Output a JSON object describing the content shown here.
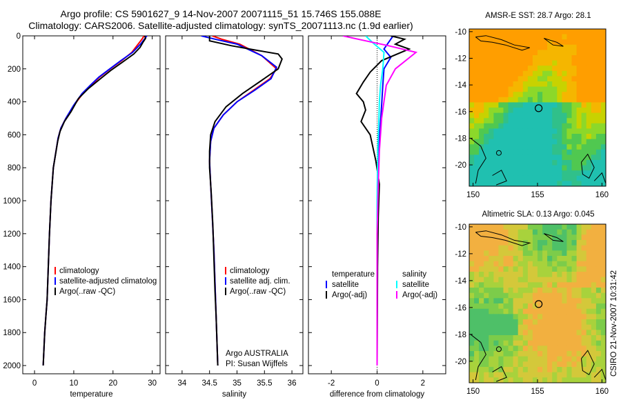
{
  "header": {
    "line1": "Argo profile: CS 5901627_9 14-Nov-2007 20071115_51 15.746S 155.088E",
    "line2": "Climatology: CARS2006. Satellite-adjusted climatology: synTS_20071113.nc (1.9d earlier)"
  },
  "credit": "CSIRO 21-Nov-2007 10:31:42",
  "float_info": {
    "line1": "Argo AUSTRALIA",
    "line2": "PI: Susan Wijffels"
  },
  "colors": {
    "climatology": "#ff0000",
    "satellite": "#0000ff",
    "argo": "#000000",
    "sal_sat": "#00ffff",
    "sal_argo": "#ff00ff"
  },
  "chart_data": [
    {
      "type": "line",
      "xlabel": "temperature",
      "xlim": [
        -3,
        32
      ],
      "ylim": [
        2050,
        0
      ],
      "yticks": [
        0,
        200,
        400,
        600,
        800,
        1000,
        1200,
        1400,
        1600,
        1800,
        2000
      ],
      "xticks": [
        0,
        10,
        20,
        30
      ],
      "legend": [
        "climatology",
        "satellite-adjusted climatolog",
        "Argo(..raw -QC)"
      ],
      "series": [
        {
          "name": "climatology",
          "color": "#ff0000",
          "x": [
            27.9,
            27.4,
            26.4,
            24.8,
            22.2,
            19.3,
            16.6,
            14.4,
            12.3,
            10.1,
            8.0,
            6.7,
            6.0,
            4.8,
            4.2,
            3.8,
            3.5,
            3.2,
            2.9,
            2.6,
            2.4,
            2.2
          ],
          "y": [
            0,
            20,
            50,
            100,
            150,
            200,
            250,
            300,
            350,
            420,
            500,
            560,
            620,
            800,
            1000,
            1200,
            1400,
            1600,
            1700,
            1800,
            1900,
            2000
          ]
        },
        {
          "name": "satellite-adjusted climatolog",
          "color": "#0000ff",
          "x": [
            28.6,
            28.0,
            27.0,
            25.0,
            22.0,
            19.2,
            16.4,
            14.2,
            12.1,
            10.0,
            8.0,
            6.7,
            6.0,
            4.8,
            4.2,
            3.8,
            3.5,
            3.2,
            2.9,
            2.6,
            2.4,
            2.2
          ],
          "y": [
            0,
            20,
            50,
            100,
            150,
            200,
            250,
            300,
            350,
            420,
            500,
            560,
            620,
            800,
            1000,
            1200,
            1400,
            1600,
            1700,
            1800,
            1900,
            2000
          ]
        },
        {
          "name": "Argo(..raw -QC)",
          "color": "#000000",
          "x": [
            28.1,
            28.3,
            27.6,
            26.9,
            25.3,
            22.4,
            19.4,
            16.8,
            13.7,
            11.2,
            9.3,
            7.6,
            6.5,
            5.9,
            4.8,
            4.2,
            3.8,
            3.5,
            3.2,
            2.9,
            2.6,
            2.4,
            2.2
          ],
          "y": [
            0,
            15,
            40,
            70,
            110,
            160,
            210,
            260,
            320,
            380,
            460,
            520,
            580,
            640,
            800,
            1000,
            1200,
            1400,
            1600,
            1700,
            1800,
            1900,
            2000
          ]
        }
      ]
    },
    {
      "type": "line",
      "xlabel": "salinity",
      "xlim": [
        33.7,
        36.2
      ],
      "ylim": [
        2050,
        0
      ],
      "xticks": [
        34,
        34.5,
        35,
        35.5,
        36
      ],
      "legend": [
        "climatology",
        "satellite adj. clim.",
        "Argo(..raw -QC)"
      ],
      "series": [
        {
          "name": "climatology",
          "color": "#ff0000",
          "x": [
            34.55,
            34.72,
            35.05,
            35.45,
            35.72,
            35.6,
            35.3,
            35.0,
            34.75,
            34.58,
            34.52,
            34.5,
            34.52,
            34.55,
            34.58,
            34.6,
            34.62,
            34.63,
            34.64,
            34.65
          ],
          "y": [
            0,
            20,
            50,
            120,
            200,
            260,
            330,
            400,
            480,
            560,
            640,
            760,
            900,
            1100,
            1300,
            1500,
            1700,
            1800,
            1900,
            2000
          ]
        },
        {
          "name": "satellite adj. clim.",
          "color": "#0000ff",
          "x": [
            34.35,
            34.6,
            35.0,
            35.45,
            35.72,
            35.62,
            35.32,
            35.0,
            34.75,
            34.58,
            34.52,
            34.5,
            34.52,
            34.55,
            34.58,
            34.6,
            34.62,
            34.63,
            34.64,
            34.65
          ],
          "y": [
            0,
            20,
            50,
            120,
            190,
            260,
            330,
            400,
            480,
            560,
            640,
            760,
            900,
            1100,
            1300,
            1500,
            1700,
            1800,
            1900,
            2000
          ]
        },
        {
          "name": "Argo(..raw -QC)",
          "color": "#000000",
          "x": [
            34.5,
            34.5,
            34.9,
            35.4,
            35.75,
            35.82,
            35.75,
            35.45,
            35.1,
            34.8,
            34.6,
            34.52,
            34.5,
            34.5,
            34.53,
            34.56,
            34.58,
            34.6,
            34.62,
            34.63,
            34.64,
            34.65
          ],
          "y": [
            0,
            30,
            60,
            90,
            110,
            140,
            200,
            270,
            350,
            430,
            520,
            600,
            700,
            800,
            950,
            1150,
            1350,
            1550,
            1700,
            1800,
            1900,
            2000
          ]
        }
      ]
    },
    {
      "type": "line",
      "xlabel": "difference from climatology",
      "xlim": [
        -3,
        3
      ],
      "ylim": [
        2050,
        0
      ],
      "xticks": [
        -2,
        0,
        2
      ],
      "legend_heads": [
        "temperature",
        "salinity"
      ],
      "legend": [
        "satellite",
        "Argo(-adj)",
        "satellite",
        "Argo(-adj)"
      ],
      "series": [
        {
          "name": "satellite",
          "color": "#0000ff",
          "x": [
            0.7,
            0.5,
            0.3,
            0.6,
            0.3,
            0.25,
            0.2,
            0.15,
            0.1,
            0.05,
            0.02,
            0.0,
            0.0,
            0.0,
            0.0
          ],
          "y": [
            0,
            40,
            80,
            130,
            200,
            300,
            420,
            520,
            620,
            720,
            900,
            1200,
            1500,
            1800,
            2000
          ]
        },
        {
          "name": "Argo(-adj)",
          "color": "#000000",
          "x": [
            0.6,
            1.2,
            0.8,
            1.4,
            0.2,
            -0.3,
            -0.6,
            -0.9,
            -0.6,
            -0.5,
            -0.7,
            -0.3,
            -0.05,
            0.1,
            0.05,
            0.02,
            0.0
          ],
          "y": [
            0,
            20,
            50,
            80,
            150,
            220,
            280,
            350,
            400,
            450,
            520,
            600,
            760,
            900,
            1100,
            1400,
            2000
          ]
        },
        {
          "name": "satellite",
          "color": "#00ffff",
          "x": [
            -0.5,
            -0.2,
            0.3,
            0.25,
            0.15,
            0.1,
            0.08,
            0.05,
            0.03,
            0.02,
            0.0,
            0.0,
            0.0,
            0.0
          ],
          "y": [
            0,
            40,
            100,
            200,
            300,
            400,
            500,
            600,
            700,
            800,
            1000,
            1400,
            1800,
            2000
          ]
        },
        {
          "name": "Argo(-adj)",
          "color": "#ff00ff",
          "x": [
            -1.5,
            -0.5,
            0.5,
            1.7,
            0.8,
            0.4,
            0.2,
            0.1,
            0.05,
            0.0,
            0.0
          ],
          "y": [
            0,
            30,
            60,
            100,
            200,
            300,
            500,
            700,
            900,
            1200,
            2000
          ]
        }
      ]
    },
    {
      "type": "heatmap",
      "title": "AMSR-E SST: 28.7 Argo: 28.1",
      "xlim": [
        149.7,
        160.3
      ],
      "ylim": [
        -21.6,
        -9.8
      ],
      "xticks": [
        150,
        155,
        160
      ],
      "yticks": [
        -10,
        -12,
        -14,
        -16,
        -18,
        -20
      ],
      "argo_position": {
        "lon": 155.088,
        "lat": -15.746
      }
    },
    {
      "type": "heatmap",
      "title": "Altimetric SLA: 0.13 Argo: 0.045",
      "xlim": [
        149.7,
        160.3
      ],
      "ylim": [
        -21.6,
        -9.8
      ],
      "xticks": [
        150,
        155,
        160
      ],
      "yticks": [
        -10,
        -12,
        -14,
        -16,
        -18,
        -20
      ],
      "argo_position": {
        "lon": 155.088,
        "lat": -15.746
      }
    }
  ]
}
